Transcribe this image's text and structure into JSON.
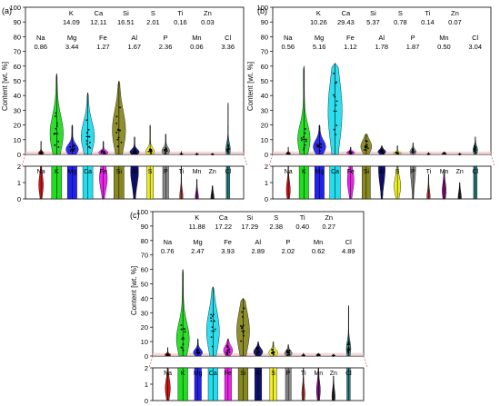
{
  "figure": {
    "ylabel": "Content [wt. %]"
  },
  "chart_data": [
    {
      "type": "violin",
      "panel_label": "(a)",
      "ylabel": "Content [wt. %]",
      "ylim": [
        0,
        100
      ],
      "yticks": [
        0,
        10,
        20,
        30,
        40,
        50,
        60,
        70,
        80,
        90,
        100
      ],
      "inset_ylim": [
        0,
        2
      ],
      "inset_yticks": [
        0,
        1,
        2
      ],
      "categories": [
        "Na",
        "K",
        "Mg",
        "Ca",
        "Fe",
        "Si",
        "Al",
        "S",
        "P",
        "Ti",
        "Mn",
        "Zn",
        "Cl"
      ],
      "colors": [
        "#d41414",
        "#22dd22",
        "#2222ee",
        "#22ddee",
        "#ee22ee",
        "#888822",
        "#101070",
        "#eeee22",
        "#888888",
        "#aa3333",
        "#771177",
        "#222222",
        "#2a8080"
      ],
      "medians": [
        0.86,
        14.09,
        3.44,
        12.11,
        1.27,
        16.51,
        1.67,
        2.01,
        2.36,
        0.16,
        0.06,
        0.03,
        3.36
      ],
      "maxima": [
        9,
        55,
        20,
        42,
        9,
        50,
        12,
        20,
        14,
        2,
        1.2,
        0.8,
        35
      ],
      "widths": [
        0.35,
        0.85,
        0.8,
        0.85,
        0.6,
        0.85,
        0.6,
        0.55,
        0.5,
        0.15,
        0.1,
        0.1,
        0.3
      ],
      "annotations": [
        {
          "element": "K",
          "value": "14.09"
        },
        {
          "element": "Ca",
          "value": "12.11"
        },
        {
          "element": "Si",
          "value": "16.51"
        },
        {
          "element": "S",
          "value": "2.01"
        },
        {
          "element": "Ti",
          "value": "0.16"
        },
        {
          "element": "Zn",
          "value": "0.03"
        },
        {
          "element": "Na",
          "value": "0.86"
        },
        {
          "element": "Mg",
          "value": "3.44"
        },
        {
          "element": "Fe",
          "value": "1.27"
        },
        {
          "element": "Al",
          "value": "1.67"
        },
        {
          "element": "P",
          "value": "2.36"
        },
        {
          "element": "Mn",
          "value": "0.06"
        },
        {
          "element": "Cl",
          "value": "3.36"
        }
      ]
    },
    {
      "type": "violin",
      "panel_label": "(b)",
      "ylabel": "Content [wt. %]",
      "ylim": [
        0,
        100
      ],
      "yticks": [
        0,
        10,
        20,
        30,
        40,
        50,
        60,
        70,
        80,
        90,
        100
      ],
      "inset_ylim": [
        0,
        2
      ],
      "inset_yticks": [
        0,
        1,
        2
      ],
      "categories": [
        "Na",
        "K",
        "Mg",
        "Ca",
        "Fe",
        "Si",
        "Al",
        "S",
        "P",
        "Ti",
        "Mn",
        "Zn",
        "Cl"
      ],
      "colors": [
        "#d41414",
        "#22dd22",
        "#2222ee",
        "#22ddee",
        "#ee22ee",
        "#888822",
        "#101070",
        "#eeee22",
        "#888888",
        "#aa3333",
        "#771177",
        "#222222",
        "#2a8080"
      ],
      "medians": [
        0.56,
        10.26,
        5.16,
        29.43,
        1.12,
        5.37,
        1.78,
        0.78,
        1.87,
        0.14,
        0.5,
        0.07,
        3.04
      ],
      "maxima": [
        5,
        60,
        20,
        62,
        5,
        14,
        6,
        6,
        8,
        1.5,
        1.8,
        1,
        12
      ],
      "widths": [
        0.3,
        0.8,
        0.8,
        0.9,
        0.5,
        0.7,
        0.5,
        0.5,
        0.4,
        0.15,
        0.3,
        0.1,
        0.3
      ],
      "annotations": [
        {
          "element": "K",
          "value": "10.26"
        },
        {
          "element": "Ca",
          "value": "29.43"
        },
        {
          "element": "Si",
          "value": "5.37"
        },
        {
          "element": "S",
          "value": "0.78"
        },
        {
          "element": "Ti",
          "value": "0.14"
        },
        {
          "element": "Zn",
          "value": "0.07"
        },
        {
          "element": "Na",
          "value": "0.56"
        },
        {
          "element": "Mg",
          "value": "5.16"
        },
        {
          "element": "Fe",
          "value": "1.12"
        },
        {
          "element": "Al",
          "value": "1.78"
        },
        {
          "element": "P",
          "value": "1.87"
        },
        {
          "element": "Mn",
          "value": "0.50"
        },
        {
          "element": "Cl",
          "value": "3.04"
        }
      ]
    },
    {
      "type": "violin",
      "panel_label": "(c)",
      "ylabel": "Content [wt. %]",
      "ylim": [
        0,
        100
      ],
      "yticks": [
        0,
        10,
        20,
        30,
        40,
        50,
        60,
        70,
        80,
        90,
        100
      ],
      "inset_ylim": [
        0,
        2
      ],
      "inset_yticks": [
        0,
        1,
        2
      ],
      "categories": [
        "Na",
        "K",
        "Mg",
        "Ca",
        "Fe",
        "Si",
        "Al",
        "S",
        "P",
        "Ti",
        "Mn",
        "Zn",
        "Cl"
      ],
      "colors": [
        "#d41414",
        "#22dd22",
        "#2222ee",
        "#22ddee",
        "#ee22ee",
        "#888822",
        "#101070",
        "#eeee22",
        "#888888",
        "#aa3333",
        "#771177",
        "#222222",
        "#2a8080"
      ],
      "medians": [
        0.76,
        11.88,
        2.47,
        17.22,
        3.93,
        17.29,
        2.89,
        2.38,
        2.02,
        0.4,
        0.62,
        0.27,
        4.89
      ],
      "maxima": [
        6,
        60,
        12,
        48,
        12,
        40,
        10,
        10,
        8,
        2,
        2,
        1.5,
        35
      ],
      "widths": [
        0.4,
        0.85,
        0.6,
        0.85,
        0.6,
        0.85,
        0.6,
        0.6,
        0.5,
        0.2,
        0.3,
        0.2,
        0.3
      ],
      "annotations": [
        {
          "element": "K",
          "value": "11.88"
        },
        {
          "element": "Ca",
          "value": "17.22"
        },
        {
          "element": "Si",
          "value": "17.29"
        },
        {
          "element": "S",
          "value": "2.38"
        },
        {
          "element": "Ti",
          "value": "0.40"
        },
        {
          "element": "Zn",
          "value": "0.27"
        },
        {
          "element": "Na",
          "value": "0.76"
        },
        {
          "element": "Mg",
          "value": "2.47"
        },
        {
          "element": "Fe",
          "value": "3.93"
        },
        {
          "element": "Al",
          "value": "2.89"
        },
        {
          "element": "P",
          "value": "2.02"
        },
        {
          "element": "Mn",
          "value": "0.62"
        },
        {
          "element": "Cl",
          "value": "4.89"
        }
      ]
    }
  ]
}
